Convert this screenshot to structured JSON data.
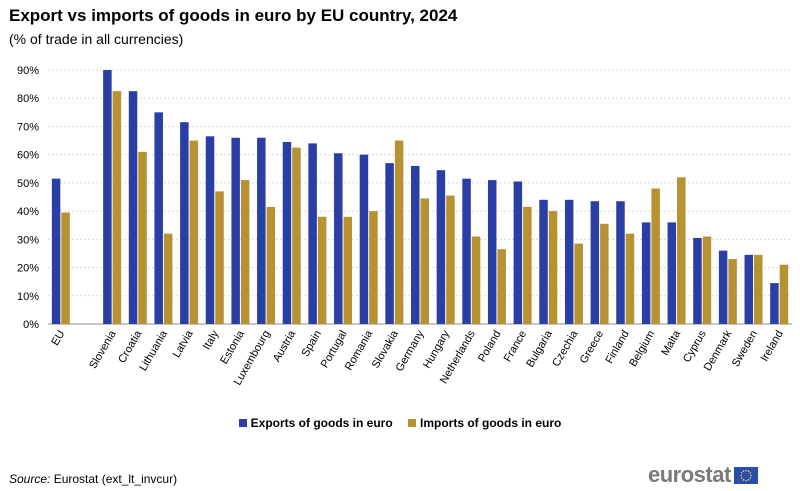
{
  "title": "Export vs imports of goods in euro by EU country, 2024",
  "subtitle": "(% of trade in all currencies)",
  "source_label": "Source:",
  "source_text": " Eurostat (ext_lt_invcur)",
  "logo_text": "eurostat",
  "colors": {
    "exports": "#2a3fa5",
    "imports": "#b69232",
    "grid": "#d9d9d9",
    "axis": "#8c8c8c"
  },
  "chart_data": {
    "type": "bar",
    "title": "Export vs imports of goods in euro by EU country, 2024",
    "subtitle": "(% of trade in all currencies)",
    "xlabel": "",
    "ylabel": "",
    "ylim": [
      0,
      90
    ],
    "yticks": [
      0,
      10,
      20,
      30,
      40,
      50,
      60,
      70,
      80,
      90
    ],
    "ytick_labels": [
      "0%",
      "10%",
      "20%",
      "30%",
      "40%",
      "50%",
      "60%",
      "70%",
      "80%",
      "90%"
    ],
    "grid": true,
    "legend_position": "bottom",
    "categories": [
      "EU",
      "",
      "Slovenia",
      "Croatia",
      "Lithuania",
      "Latvia",
      "Italy",
      "Estonia",
      "Luxembourg",
      "Austria",
      "Spain",
      "Portugal",
      "Romania",
      "Slovakia",
      "Germany",
      "Hungary",
      "Netherlands",
      "Poland",
      "France",
      "Bulgaria",
      "Czechia",
      "Greece",
      "Finland",
      "Belgium",
      "Malta",
      "Cyprus",
      "Denmark",
      "Sweden",
      "Ireland"
    ],
    "series": [
      {
        "name": "Exports of goods in euro",
        "values": [
          51.5,
          null,
          90,
          82.5,
          75,
          71.5,
          66.5,
          66,
          66,
          64.5,
          64,
          60.5,
          60,
          57,
          56,
          54.5,
          51.5,
          51,
          50.5,
          44,
          44,
          43.5,
          43.5,
          36,
          36,
          30.5,
          26,
          24.5,
          14.5
        ]
      },
      {
        "name": "Imports of goods in euro",
        "values": [
          39.5,
          null,
          82.5,
          61,
          32,
          65,
          47,
          51,
          41.5,
          62.5,
          38,
          38,
          40,
          65,
          44.5,
          45.5,
          31,
          26.5,
          41.5,
          40,
          28.5,
          35.5,
          32,
          48,
          52,
          31,
          23,
          24.5,
          21
        ]
      }
    ]
  }
}
